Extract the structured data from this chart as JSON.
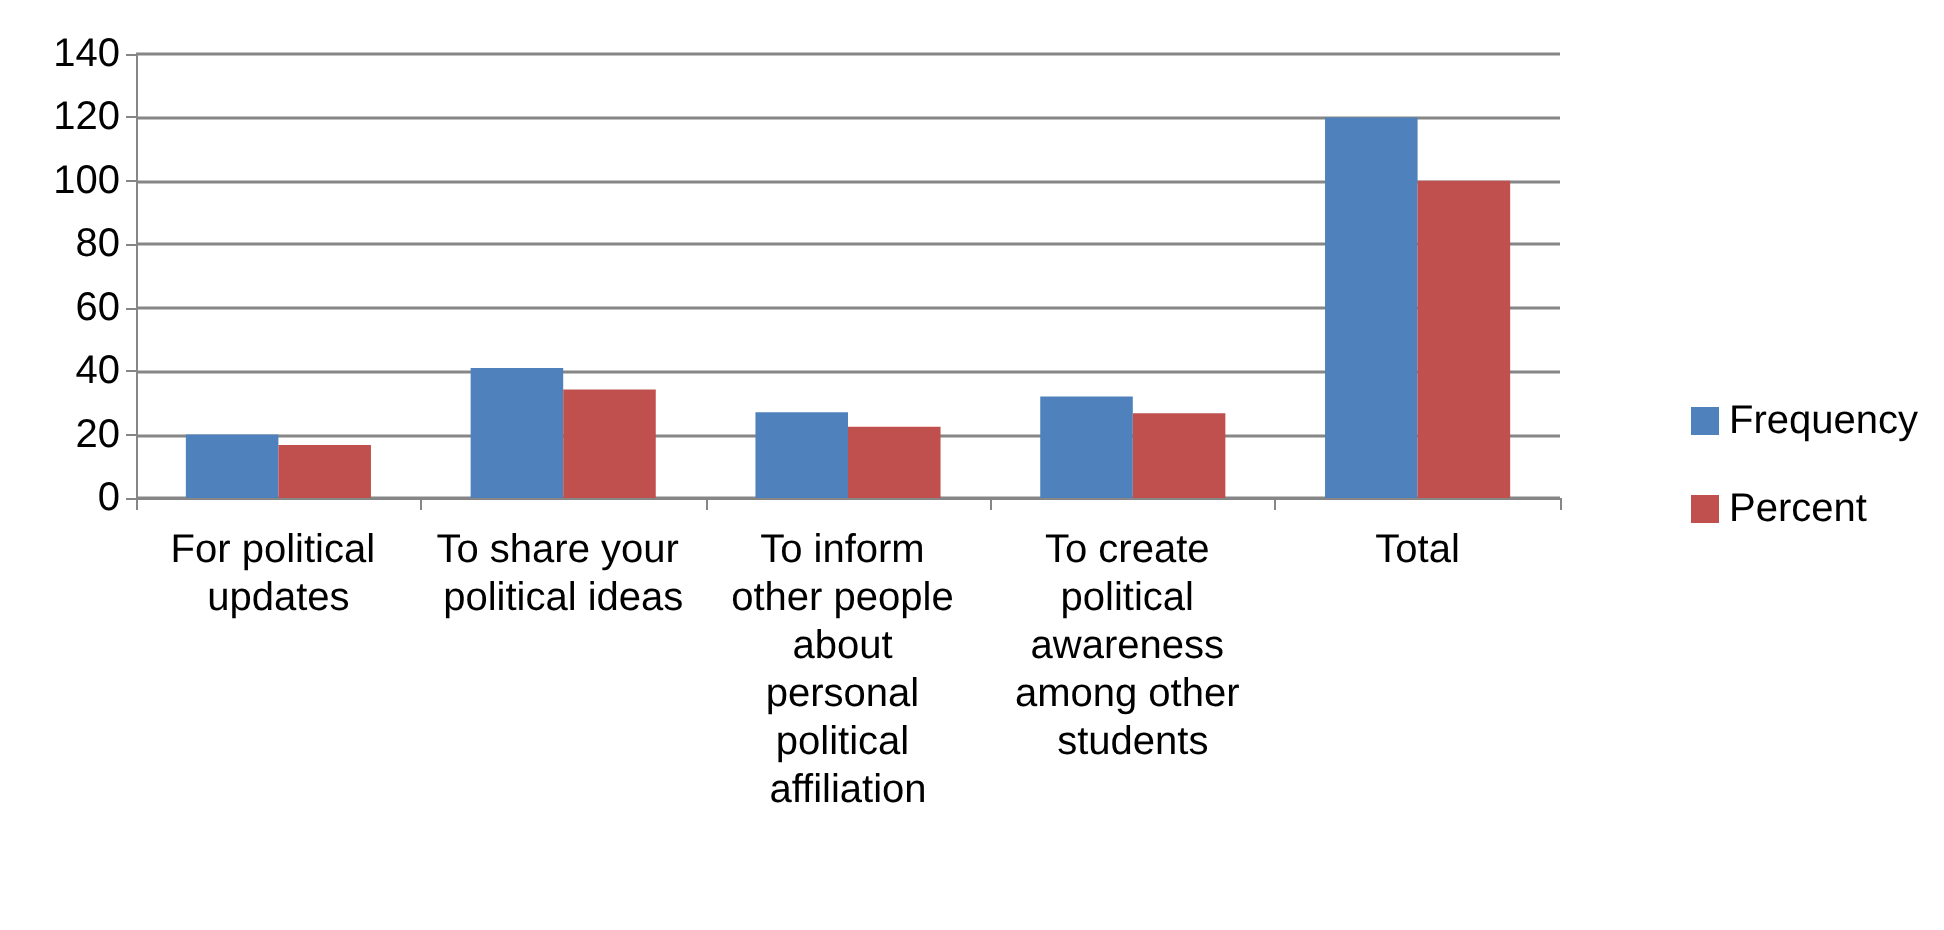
{
  "chart_data": {
    "type": "bar",
    "categories": [
      "For political updates",
      "To share your political ideas",
      "To inform other people about personal political affiliation",
      "To create political awareness among other students",
      "Total"
    ],
    "series": [
      {
        "name": "Frequency",
        "color": "#4f81bd",
        "values": [
          20,
          41,
          27,
          32,
          120
        ]
      },
      {
        "name": "Percent",
        "color": "#c0504d",
        "values": [
          16.7,
          34.2,
          22.5,
          26.7,
          100
        ]
      }
    ],
    "ylim": [
      0,
      140
    ],
    "yticks": [
      0,
      20,
      40,
      60,
      80,
      100,
      120,
      140
    ],
    "grid": "y",
    "legend": "right"
  }
}
